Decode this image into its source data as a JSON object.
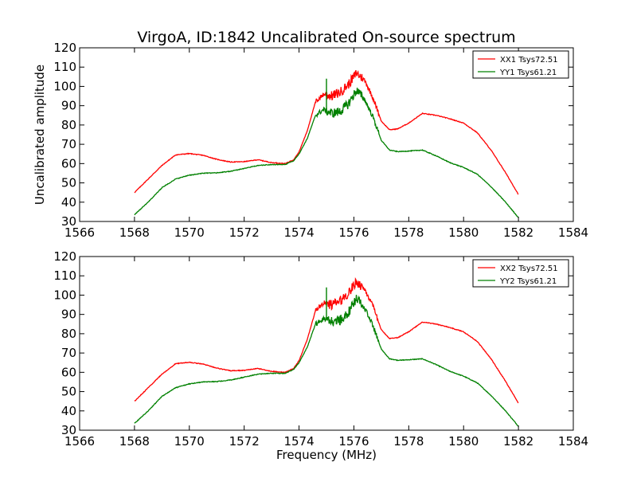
{
  "figure": {
    "title": "VirgoA, ID:1842 Uncalibrated On-source spectrum"
  },
  "chart_data": [
    {
      "type": "line",
      "title": "VirgoA, ID:1842 Uncalibrated On-source spectrum",
      "xlabel": "",
      "ylabel": "Uncalibrated amplitude",
      "xlim": [
        1566,
        1584
      ],
      "ylim": [
        30,
        120
      ],
      "xticks": [
        "1566",
        "1568",
        "1570",
        "1572",
        "1574",
        "1576",
        "1578",
        "1580",
        "1582",
        "1584"
      ],
      "yticks": [
        "30",
        "40",
        "50",
        "60",
        "70",
        "80",
        "90",
        "100",
        "110",
        "120"
      ],
      "grid": false,
      "legend_position": "top-right",
      "series": [
        {
          "name": "XX1 Tsys72.51",
          "color": "#ff0000",
          "x": [
            1568.0,
            1568.5,
            1569.0,
            1569.5,
            1570.0,
            1570.5,
            1571.0,
            1571.5,
            1572.0,
            1572.5,
            1573.0,
            1573.5,
            1573.8,
            1574.0,
            1574.3,
            1574.6,
            1574.9,
            1575.2,
            1575.5,
            1575.8,
            1576.1,
            1576.4,
            1576.7,
            1577.0,
            1577.3,
            1577.6,
            1578.0,
            1578.5,
            1579.0,
            1579.5,
            1580.0,
            1580.5,
            1581.0,
            1581.5,
            1582.0
          ],
          "y": [
            45,
            52,
            59,
            64.5,
            65.2,
            64.3,
            62.2,
            60.8,
            61,
            62,
            60.5,
            60,
            62,
            66,
            77,
            92,
            96,
            95,
            97,
            101,
            107,
            103,
            94,
            82,
            77.5,
            78,
            81,
            86,
            85,
            83.2,
            81,
            76,
            67,
            56,
            44
          ]
        },
        {
          "name": "YY1 Tsys61.21",
          "color": "#008000",
          "x": [
            1568.0,
            1568.5,
            1569.0,
            1569.5,
            1570.0,
            1570.5,
            1571.0,
            1571.5,
            1572.0,
            1572.5,
            1573.0,
            1573.5,
            1573.8,
            1574.0,
            1574.3,
            1574.6,
            1574.9,
            1575.2,
            1575.5,
            1575.8,
            1576.1,
            1576.4,
            1576.7,
            1577.0,
            1577.3,
            1577.6,
            1578.0,
            1578.5,
            1579.0,
            1579.5,
            1580.0,
            1580.5,
            1581.0,
            1581.5,
            1582.0
          ],
          "y": [
            33.5,
            40,
            47.5,
            52,
            54,
            55,
            55.2,
            56,
            57.5,
            59,
            59.5,
            59.5,
            61.5,
            65,
            73,
            85,
            88,
            86,
            87,
            91,
            98,
            93,
            84,
            72,
            67,
            66.2,
            66.5,
            67,
            64,
            60.5,
            58,
            54.5,
            48,
            40.5,
            32
          ]
        }
      ],
      "spikes": [
        {
          "series": 1,
          "x": 1575.0,
          "y": 104
        }
      ]
    },
    {
      "type": "line",
      "title": "",
      "xlabel": "Frequency (MHz)",
      "ylabel": "",
      "xlim": [
        1566,
        1584
      ],
      "ylim": [
        30,
        120
      ],
      "xticks": [
        "1566",
        "1568",
        "1570",
        "1572",
        "1574",
        "1576",
        "1578",
        "1580",
        "1582",
        "1584"
      ],
      "yticks": [
        "30",
        "40",
        "50",
        "60",
        "70",
        "80",
        "90",
        "100",
        "110",
        "120"
      ],
      "grid": false,
      "legend_position": "top-right",
      "series": [
        {
          "name": "XX2 Tsys72.51",
          "color": "#ff0000",
          "x": [
            1568.0,
            1568.5,
            1569.0,
            1569.5,
            1570.0,
            1570.5,
            1571.0,
            1571.5,
            1572.0,
            1572.5,
            1573.0,
            1573.5,
            1573.8,
            1574.0,
            1574.3,
            1574.6,
            1574.9,
            1575.2,
            1575.5,
            1575.8,
            1576.1,
            1576.4,
            1576.7,
            1577.0,
            1577.3,
            1577.6,
            1578.0,
            1578.5,
            1579.0,
            1579.5,
            1580.0,
            1580.5,
            1581.0,
            1581.5,
            1582.0
          ],
          "y": [
            45,
            52,
            59,
            64.5,
            65.2,
            64.3,
            62.2,
            60.8,
            61,
            62,
            60.5,
            60,
            62,
            66,
            77,
            92,
            96,
            95,
            97,
            101,
            107,
            103,
            94,
            82,
            77.5,
            78,
            81,
            86,
            85,
            83.2,
            81,
            76,
            67,
            56,
            44
          ]
        },
        {
          "name": "YY2 Tsys61.21",
          "color": "#008000",
          "x": [
            1568.0,
            1568.5,
            1569.0,
            1569.5,
            1570.0,
            1570.5,
            1571.0,
            1571.5,
            1572.0,
            1572.5,
            1573.0,
            1573.5,
            1573.8,
            1574.0,
            1574.3,
            1574.6,
            1574.9,
            1575.2,
            1575.5,
            1575.8,
            1576.1,
            1576.4,
            1576.7,
            1577.0,
            1577.3,
            1577.6,
            1578.0,
            1578.5,
            1579.0,
            1579.5,
            1580.0,
            1580.5,
            1581.0,
            1581.5,
            1582.0
          ],
          "y": [
            33.5,
            40,
            47.5,
            52,
            54,
            55,
            55.2,
            56,
            57.5,
            59,
            59.5,
            59.5,
            61.5,
            65,
            73,
            85,
            88,
            86,
            87,
            91,
            98,
            93,
            84,
            72,
            67,
            66.2,
            66.5,
            67,
            64,
            60.5,
            58,
            54.5,
            48,
            40.5,
            32
          ]
        }
      ],
      "spikes": [
        {
          "series": 1,
          "x": 1575.0,
          "y": 104
        }
      ]
    }
  ]
}
